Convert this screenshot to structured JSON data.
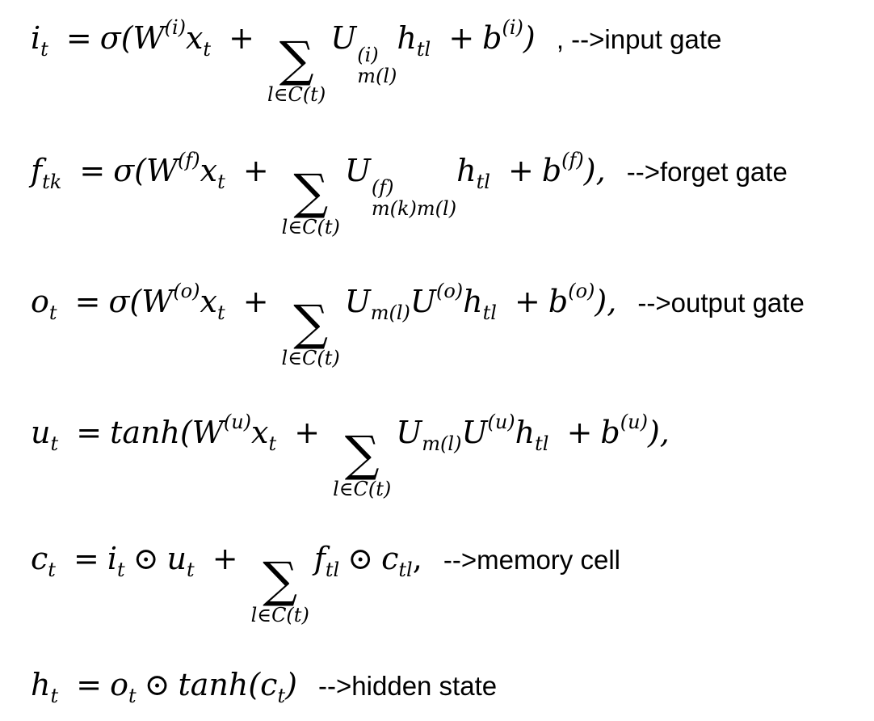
{
  "equations": [
    {
      "id": "input-gate",
      "lhs": "i",
      "lhs_sub": "t",
      "rhs_func": "σ(",
      "w": "W",
      "w_sup": "(i)",
      "x": "x",
      "x_sub": "t",
      "u": "U",
      "u_sup": "(i)",
      "u_sub": "m(l)",
      "h": "h",
      "h_sub": "tl",
      "b": "b",
      "b_sup": "(i)",
      "close": ")",
      "sum_range": "l∈C(t)",
      "comment": ", -->input gate"
    },
    {
      "id": "forget-gate",
      "lhs": "f",
      "lhs_sub": "tk",
      "rhs_func": "σ(",
      "w": "W",
      "w_sup": "(f)",
      "x": "x",
      "x_sub": "t",
      "u": "U",
      "u_sup": "(f)",
      "u_sub": "m(k)m(l)",
      "h": "h",
      "h_sub": "tl",
      "b": "b",
      "b_sup": "(f)",
      "close": "),",
      "sum_range": "l∈C(t)",
      "comment": "-->forget gate"
    },
    {
      "id": "output-gate",
      "lhs": "o",
      "lhs_sub": "t",
      "rhs_func": "σ(",
      "w": "W",
      "w_sup": "(o)",
      "x": "x",
      "x_sub": "t",
      "u1": "U",
      "u1_sub": "m(l)",
      "u2": "U",
      "u2_sup": "(o)",
      "h": "h",
      "h_sub": "tl",
      "b": "b",
      "b_sup": "(o)",
      "close": "),",
      "sum_range": "l∈C(t)",
      "comment": "-->output gate"
    },
    {
      "id": "update",
      "lhs": "u",
      "lhs_sub": "t",
      "rhs_func": "tanh(",
      "w": "W",
      "w_sup": "(u)",
      "x": "x",
      "x_sub": "t",
      "u1": "U",
      "u1_sub": "m(l)",
      "u2": "U",
      "u2_sup": "(u)",
      "h": "h",
      "h_sub": "tl",
      "b": "b",
      "b_sup": "(u)",
      "close": "),",
      "sum_range": "l∈C(t)",
      "comment": ""
    },
    {
      "id": "memory-cell",
      "lhs": "c",
      "lhs_sub": "t",
      "i": "i",
      "i_sub": "t",
      "u": "u",
      "u_sub": "t",
      "f": "f",
      "f_sub": "tl",
      "c": "c",
      "c_sub": "tl",
      "close": ",",
      "sum_range": "l∈C(t)",
      "comment": "-->memory cell"
    },
    {
      "id": "hidden-state",
      "lhs": "h",
      "lhs_sub": "t",
      "o": "o",
      "o_sub": "t",
      "func": "tanh(",
      "c": "c",
      "c_sub": "t",
      "close": ")",
      "comment": "-->hidden state"
    }
  ],
  "symbols": {
    "eq": "=",
    "plus": "+",
    "sigma": "∑",
    "odot": "⊙"
  }
}
